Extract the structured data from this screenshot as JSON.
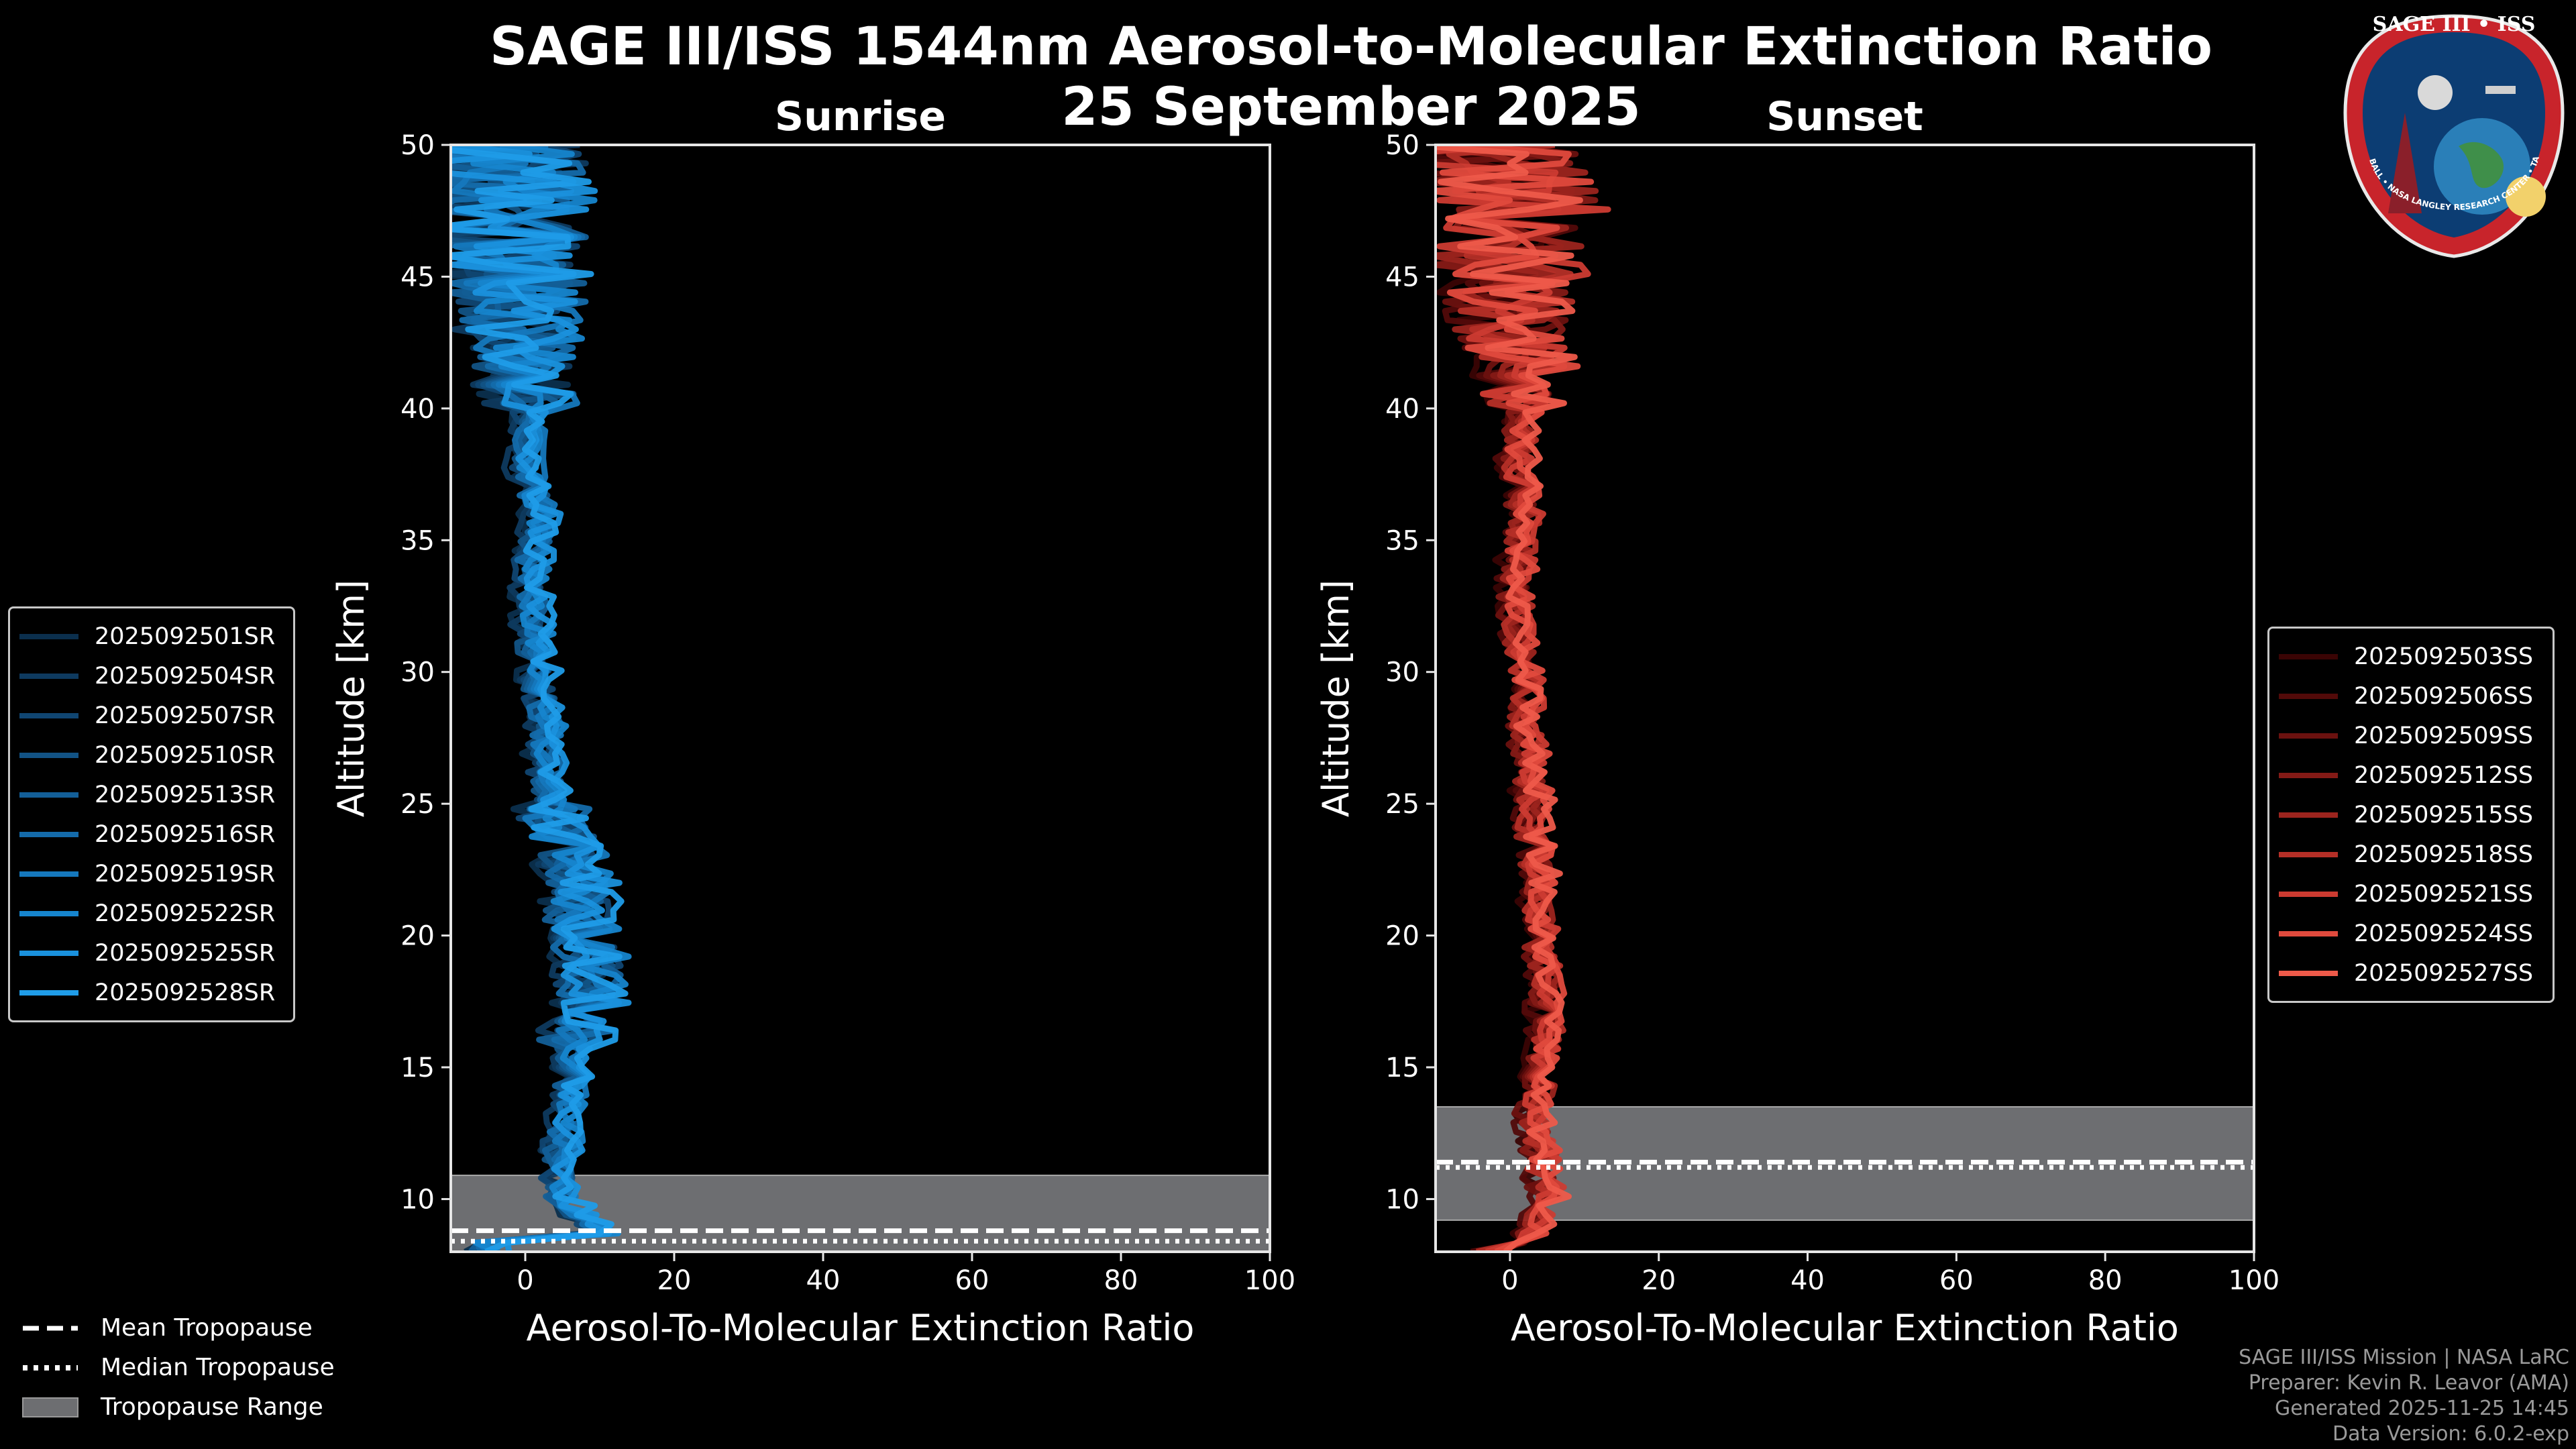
{
  "figure": {
    "title_line1": "SAGE III/ISS 1544nm Aerosol-to-Molecular Extinction Ratio",
    "title_line2": "25 September 2025",
    "logo_text": "SAGE III • ISS",
    "logo_ring_text": "BALL • NASA LANGLEY RESEARCH CENTER • TAS-I • ESA"
  },
  "credits": [
    "SAGE III/ISS Mission | NASA LaRC",
    "Preparer: Kevin R. Leavor (AMA)",
    "Generated 2025-11-25 14:45",
    "Data Version: 6.0.2-exp"
  ],
  "bottom_legend": [
    {
      "label": "Mean Tropopause",
      "style": "dashed"
    },
    {
      "label": "Median Tropopause",
      "style": "dotted"
    },
    {
      "label": "Tropopause Range",
      "style": "band"
    }
  ],
  "chart_data": [
    {
      "type": "line",
      "panel": "Sunrise",
      "title": "Sunrise",
      "xlabel": "Aerosol-To-Molecular Extinction Ratio",
      "ylabel": "Altitude [km]",
      "xlim": [
        -10,
        100
      ],
      "ylim": [
        8,
        50
      ],
      "xticks": [
        0,
        20,
        40,
        60,
        80,
        100
      ],
      "yticks": [
        10,
        15,
        20,
        25,
        30,
        35,
        40,
        45,
        50
      ],
      "tropopause": {
        "mean_km": 8.8,
        "median_km": 8.4,
        "range_km": [
          8.0,
          10.9
        ]
      },
      "baseline_altitude_km": [
        8.5,
        10,
        12,
        14,
        16,
        18,
        20,
        22,
        24,
        26,
        28,
        30,
        32,
        34,
        36,
        38,
        40,
        42,
        44,
        46,
        48,
        50
      ],
      "baseline_ratio": [
        12,
        5,
        5,
        6,
        7,
        9,
        8,
        7,
        5,
        3,
        3,
        2,
        1,
        1,
        2,
        0,
        1,
        0,
        -1,
        -2,
        -3,
        -5
      ],
      "series": [
        {
          "name": "2025092501SR",
          "color": "#0b2f4d"
        },
        {
          "name": "2025092504SR",
          "color": "#0e3a5f"
        },
        {
          "name": "2025092507SR",
          "color": "#104672"
        },
        {
          "name": "2025092510SR",
          "color": "#125385"
        },
        {
          "name": "2025092513SR",
          "color": "#135f98"
        },
        {
          "name": "2025092516SR",
          "color": "#146bab"
        },
        {
          "name": "2025092519SR",
          "color": "#1578bd"
        },
        {
          "name": "2025092522SR",
          "color": "#1685ce"
        },
        {
          "name": "2025092525SR",
          "color": "#1a91dd"
        },
        {
          "name": "2025092528SR",
          "color": "#1f9ce8"
        }
      ]
    },
    {
      "type": "line",
      "panel": "Sunset",
      "title": "Sunset",
      "xlabel": "Aerosol-To-Molecular Extinction Ratio",
      "ylabel": "Altitude [km]",
      "xlim": [
        -10,
        100
      ],
      "ylim": [
        8,
        50
      ],
      "xticks": [
        0,
        20,
        40,
        60,
        80,
        100
      ],
      "yticks": [
        10,
        15,
        20,
        25,
        30,
        35,
        40,
        45,
        50
      ],
      "tropopause": {
        "mean_km": 11.4,
        "median_km": 11.2,
        "range_km": [
          9.2,
          13.5
        ]
      },
      "baseline_altitude_km": [
        8.2,
        9,
        10,
        12,
        13.5,
        14,
        16,
        18,
        20,
        22,
        24,
        26,
        28,
        30,
        32,
        34,
        36,
        38,
        40,
        42,
        44,
        46,
        48,
        50
      ],
      "baseline_ratio": [
        2,
        3,
        5,
        4,
        3,
        4,
        5,
        5,
        4,
        4,
        3,
        3,
        2,
        2,
        1,
        1,
        2,
        1,
        2,
        1,
        1,
        0,
        1,
        -3
      ],
      "series": [
        {
          "name": "2025092503SS",
          "color": "#3a0404"
        },
        {
          "name": "2025092506SS",
          "color": "#520a09"
        },
        {
          "name": "2025092509SS",
          "color": "#6b110f"
        },
        {
          "name": "2025092512SS",
          "color": "#841a16"
        },
        {
          "name": "2025092515SS",
          "color": "#9c241e"
        },
        {
          "name": "2025092518SS",
          "color": "#b52f27"
        },
        {
          "name": "2025092521SS",
          "color": "#cc3b31"
        },
        {
          "name": "2025092524SS",
          "color": "#e04a3d"
        },
        {
          "name": "2025092527SS",
          "color": "#ee5a4a"
        }
      ]
    }
  ]
}
